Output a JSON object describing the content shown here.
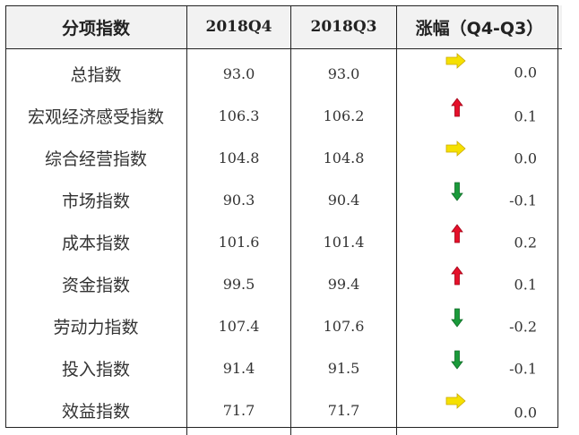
{
  "headers": [
    "分项指数",
    "2018Q4",
    "2018Q3",
    "涨幅（Q4-Q3）"
  ],
  "rows": [
    {
      "name": "总指数",
      "q4": "93.0",
      "q3": "93.0",
      "change": "0.0",
      "trend": "flat"
    },
    {
      "name": "宏观经济感受指数",
      "q4": "106.3",
      "q3": "106.2",
      "change": "0.1",
      "trend": "up"
    },
    {
      "name": "综合经营指数",
      "q4": "104.8",
      "q3": "104.8",
      "change": "0.0",
      "trend": "flat"
    },
    {
      "name": "市场指数",
      "q4": "90.3",
      "q3": "90.4",
      "change": "-0.1",
      "trend": "down"
    },
    {
      "name": "成本指数",
      "q4": "101.6",
      "q3": "101.4",
      "change": "0.2",
      "trend": "up"
    },
    {
      "name": "资金指数",
      "q4": "99.5",
      "q3": "99.4",
      "change": "0.1",
      "trend": "up"
    },
    {
      "name": "劳动力指数",
      "q4": "107.4",
      "q3": "107.6",
      "change": "-0.2",
      "trend": "down"
    },
    {
      "name": "投入指数",
      "q4": "91.4",
      "q3": "91.5",
      "change": "-0.1",
      "trend": "down"
    },
    {
      "name": "效益指数",
      "q4": "71.7",
      "q3": "71.7",
      "change": "0.0",
      "trend": "flat"
    }
  ],
  "icons": {
    "flat": {
      "name": "right-arrow-icon",
      "color": "#f5e000"
    },
    "up": {
      "name": "up-arrow-icon",
      "color": "#e5102a"
    },
    "down": {
      "name": "down-arrow-icon",
      "color": "#1a9a3a"
    }
  },
  "colors": {
    "border": "#222222",
    "header_bg": "#f2f2f2",
    "text": "#333333"
  }
}
